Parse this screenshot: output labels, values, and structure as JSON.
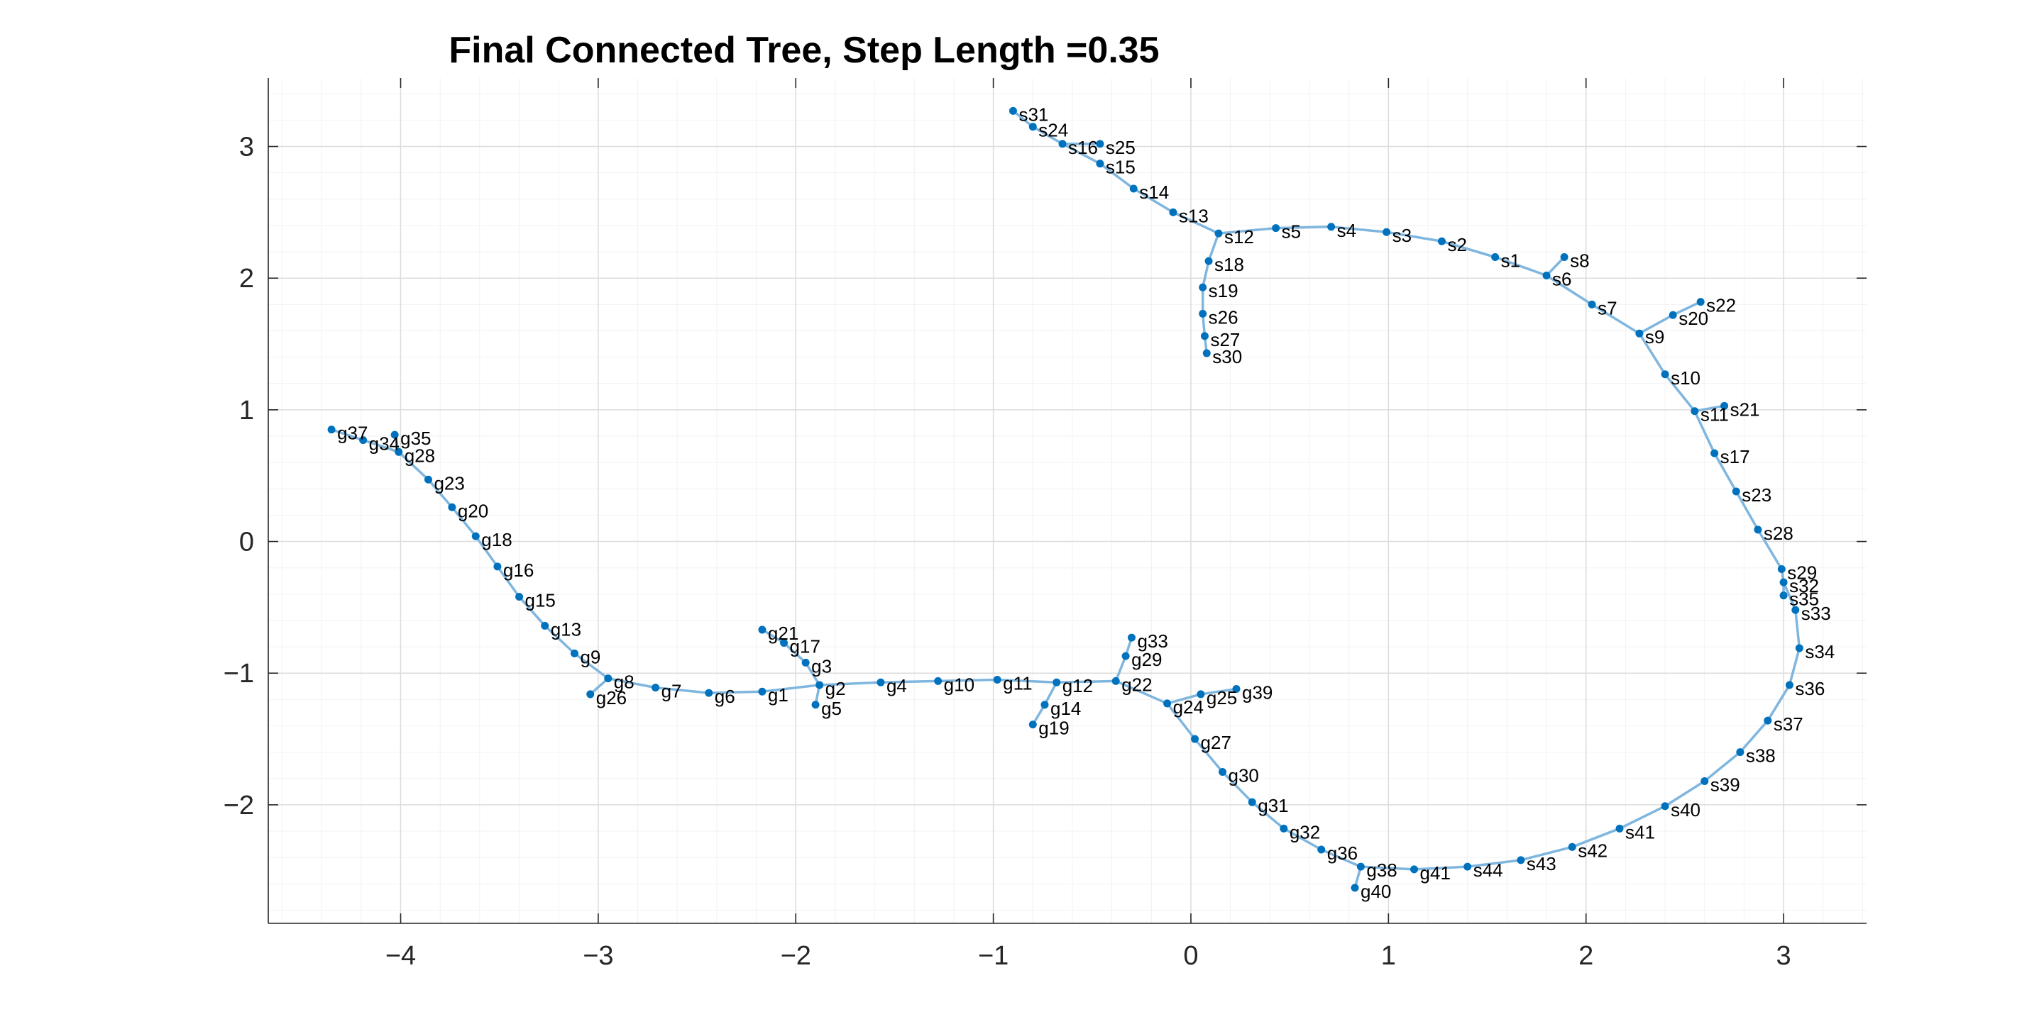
{
  "chart_data": {
    "type": "scatter",
    "title": "Final Connected Tree, Step Length =0.35",
    "xlabel": "",
    "ylabel": "",
    "xlim": [
      -4.67,
      3.42
    ],
    "ylim": [
      -2.9,
      3.52
    ],
    "xticks": [
      -4,
      -3,
      -2,
      -1,
      0,
      1,
      2,
      3
    ],
    "yticks": [
      -2,
      -1,
      0,
      1,
      2,
      3
    ],
    "grid": true,
    "minor_grid": true,
    "colors": {
      "edge": "#7fb6df",
      "node": "#0072bd",
      "axis": "#262626",
      "grid": "#e8e8e8"
    },
    "nodes": [
      {
        "label": "s1",
        "x": 1.54,
        "y": 2.16
      },
      {
        "label": "s2",
        "x": 1.27,
        "y": 2.28
      },
      {
        "label": "s3",
        "x": 0.99,
        "y": 2.35
      },
      {
        "label": "s4",
        "x": 0.71,
        "y": 2.39
      },
      {
        "label": "s5",
        "x": 0.43,
        "y": 2.38
      },
      {
        "label": "s6",
        "x": 1.8,
        "y": 2.02
      },
      {
        "label": "s7",
        "x": 2.03,
        "y": 1.8
      },
      {
        "label": "s8",
        "x": 1.89,
        "y": 2.16
      },
      {
        "label": "s9",
        "x": 2.27,
        "y": 1.58
      },
      {
        "label": "s10",
        "x": 2.4,
        "y": 1.27
      },
      {
        "label": "s11",
        "x": 2.55,
        "y": 0.99
      },
      {
        "label": "s12",
        "x": 0.14,
        "y": 2.34
      },
      {
        "label": "s13",
        "x": -0.09,
        "y": 2.5
      },
      {
        "label": "s14",
        "x": -0.29,
        "y": 2.68
      },
      {
        "label": "s15",
        "x": -0.46,
        "y": 2.87
      },
      {
        "label": "s16",
        "x": -0.65,
        "y": 3.02
      },
      {
        "label": "s17",
        "x": 2.65,
        "y": 0.67
      },
      {
        "label": "s18",
        "x": 0.09,
        "y": 2.13
      },
      {
        "label": "s19",
        "x": 0.06,
        "y": 1.93
      },
      {
        "label": "s20",
        "x": 2.44,
        "y": 1.72
      },
      {
        "label": "s21",
        "x": 2.7,
        "y": 1.03
      },
      {
        "label": "s22",
        "x": 2.58,
        "y": 1.82
      },
      {
        "label": "s23",
        "x": 2.76,
        "y": 0.38
      },
      {
        "label": "s24",
        "x": -0.8,
        "y": 3.15
      },
      {
        "label": "s25",
        "x": -0.46,
        "y": 3.02
      },
      {
        "label": "s26",
        "x": 0.06,
        "y": 1.73
      },
      {
        "label": "s27",
        "x": 0.07,
        "y": 1.56
      },
      {
        "label": "s28",
        "x": 2.87,
        "y": 0.09
      },
      {
        "label": "s29",
        "x": 2.99,
        "y": -0.21
      },
      {
        "label": "s30",
        "x": 0.08,
        "y": 1.43
      },
      {
        "label": "s31",
        "x": -0.9,
        "y": 3.27
      },
      {
        "label": "s32",
        "x": 3.0,
        "y": -0.31
      },
      {
        "label": "s33",
        "x": 3.06,
        "y": -0.52
      },
      {
        "label": "s34",
        "x": 3.08,
        "y": -0.81
      },
      {
        "label": "s35",
        "x": 3.0,
        "y": -0.41
      },
      {
        "label": "s36",
        "x": 3.03,
        "y": -1.09
      },
      {
        "label": "s37",
        "x": 2.92,
        "y": -1.36
      },
      {
        "label": "s38",
        "x": 2.78,
        "y": -1.6
      },
      {
        "label": "s39",
        "x": 2.6,
        "y": -1.82
      },
      {
        "label": "s40",
        "x": 2.4,
        "y": -2.01
      },
      {
        "label": "s41",
        "x": 2.17,
        "y": -2.18
      },
      {
        "label": "s42",
        "x": 1.93,
        "y": -2.32
      },
      {
        "label": "s43",
        "x": 1.67,
        "y": -2.42
      },
      {
        "label": "s44",
        "x": 1.4,
        "y": -2.47
      },
      {
        "label": "g1",
        "x": -2.17,
        "y": -1.14
      },
      {
        "label": "g2",
        "x": -1.88,
        "y": -1.09
      },
      {
        "label": "g3",
        "x": -1.95,
        "y": -0.92
      },
      {
        "label": "g4",
        "x": -1.57,
        "y": -1.07
      },
      {
        "label": "g5",
        "x": -1.9,
        "y": -1.24
      },
      {
        "label": "g6",
        "x": -2.44,
        "y": -1.15
      },
      {
        "label": "g7",
        "x": -2.71,
        "y": -1.11
      },
      {
        "label": "g8",
        "x": -2.95,
        "y": -1.04
      },
      {
        "label": "g9",
        "x": -3.12,
        "y": -0.85
      },
      {
        "label": "g10",
        "x": -1.28,
        "y": -1.06
      },
      {
        "label": "g11",
        "x": -0.98,
        "y": -1.05
      },
      {
        "label": "g12",
        "x": -0.68,
        "y": -1.07
      },
      {
        "label": "g13",
        "x": -3.27,
        "y": -0.64
      },
      {
        "label": "g14",
        "x": -0.74,
        "y": -1.24
      },
      {
        "label": "g15",
        "x": -3.4,
        "y": -0.42
      },
      {
        "label": "g16",
        "x": -3.51,
        "y": -0.19
      },
      {
        "label": "g17",
        "x": -2.06,
        "y": -0.77
      },
      {
        "label": "g18",
        "x": -3.62,
        "y": 0.04
      },
      {
        "label": "g19",
        "x": -0.8,
        "y": -1.39
      },
      {
        "label": "g20",
        "x": -3.74,
        "y": 0.26
      },
      {
        "label": "g21",
        "x": -2.17,
        "y": -0.67
      },
      {
        "label": "g22",
        "x": -0.38,
        "y": -1.06
      },
      {
        "label": "g23",
        "x": -3.86,
        "y": 0.47
      },
      {
        "label": "g24",
        "x": -0.12,
        "y": -1.23
      },
      {
        "label": "g25",
        "x": 0.05,
        "y": -1.16
      },
      {
        "label": "g26",
        "x": -3.04,
        "y": -1.16
      },
      {
        "label": "g27",
        "x": 0.02,
        "y": -1.5
      },
      {
        "label": "g28",
        "x": -4.01,
        "y": 0.68
      },
      {
        "label": "g29",
        "x": -0.33,
        "y": -0.87
      },
      {
        "label": "g30",
        "x": 0.16,
        "y": -1.75
      },
      {
        "label": "g31",
        "x": 0.31,
        "y": -1.98
      },
      {
        "label": "g32",
        "x": 0.47,
        "y": -2.18
      },
      {
        "label": "g33",
        "x": -0.3,
        "y": -0.73
      },
      {
        "label": "g34",
        "x": -4.19,
        "y": 0.77
      },
      {
        "label": "g35",
        "x": -4.03,
        "y": 0.81
      },
      {
        "label": "g36",
        "x": 0.66,
        "y": -2.34
      },
      {
        "label": "g37",
        "x": -4.35,
        "y": 0.85
      },
      {
        "label": "g38",
        "x": 0.86,
        "y": -2.47
      },
      {
        "label": "g39",
        "x": 0.23,
        "y": -1.12
      },
      {
        "label": "g40",
        "x": 0.83,
        "y": -2.63
      },
      {
        "label": "g41",
        "x": 1.13,
        "y": -2.49
      }
    ],
    "edges": [
      [
        "s31",
        "s24"
      ],
      [
        "s24",
        "s16"
      ],
      [
        "s16",
        "s15"
      ],
      [
        "s16",
        "s25"
      ],
      [
        "s15",
        "s14"
      ],
      [
        "s14",
        "s13"
      ],
      [
        "s13",
        "s12"
      ],
      [
        "s12",
        "s5"
      ],
      [
        "s5",
        "s4"
      ],
      [
        "s4",
        "s3"
      ],
      [
        "s3",
        "s2"
      ],
      [
        "s2",
        "s1"
      ],
      [
        "s1",
        "s6"
      ],
      [
        "s6",
        "s8"
      ],
      [
        "s6",
        "s7"
      ],
      [
        "s7",
        "s9"
      ],
      [
        "s9",
        "s20"
      ],
      [
        "s20",
        "s22"
      ],
      [
        "s9",
        "s10"
      ],
      [
        "s10",
        "s11"
      ],
      [
        "s11",
        "s21"
      ],
      [
        "s11",
        "s17"
      ],
      [
        "s17",
        "s23"
      ],
      [
        "s23",
        "s28"
      ],
      [
        "s28",
        "s29"
      ],
      [
        "s29",
        "s32"
      ],
      [
        "s32",
        "s35"
      ],
      [
        "s32",
        "s33"
      ],
      [
        "s33",
        "s34"
      ],
      [
        "s34",
        "s36"
      ],
      [
        "s36",
        "s37"
      ],
      [
        "s37",
        "s38"
      ],
      [
        "s38",
        "s39"
      ],
      [
        "s39",
        "s40"
      ],
      [
        "s40",
        "s41"
      ],
      [
        "s41",
        "s42"
      ],
      [
        "s42",
        "s43"
      ],
      [
        "s43",
        "s44"
      ],
      [
        "s44",
        "g41"
      ],
      [
        "g41",
        "g38"
      ],
      [
        "g38",
        "g40"
      ],
      [
        "g38",
        "g36"
      ],
      [
        "g36",
        "g32"
      ],
      [
        "g32",
        "g31"
      ],
      [
        "g31",
        "g30"
      ],
      [
        "g30",
        "g27"
      ],
      [
        "g27",
        "g24"
      ],
      [
        "g24",
        "g25"
      ],
      [
        "g25",
        "g39"
      ],
      [
        "g24",
        "g22"
      ],
      [
        "g22",
        "g29"
      ],
      [
        "g29",
        "g33"
      ],
      [
        "g22",
        "g12"
      ],
      [
        "g12",
        "g14"
      ],
      [
        "g14",
        "g19"
      ],
      [
        "g12",
        "g11"
      ],
      [
        "g11",
        "g10"
      ],
      [
        "g10",
        "g4"
      ],
      [
        "g4",
        "g2"
      ],
      [
        "g2",
        "g5"
      ],
      [
        "g2",
        "g3"
      ],
      [
        "g3",
        "g17"
      ],
      [
        "g17",
        "g21"
      ],
      [
        "g2",
        "g1"
      ],
      [
        "g1",
        "g6"
      ],
      [
        "g6",
        "g7"
      ],
      [
        "g7",
        "g8"
      ],
      [
        "g8",
        "g26"
      ],
      [
        "g8",
        "g9"
      ],
      [
        "g9",
        "g13"
      ],
      [
        "g13",
        "g15"
      ],
      [
        "g15",
        "g16"
      ],
      [
        "g16",
        "g18"
      ],
      [
        "g18",
        "g20"
      ],
      [
        "g20",
        "g23"
      ],
      [
        "g23",
        "g28"
      ],
      [
        "g28",
        "g35"
      ],
      [
        "g28",
        "g34"
      ],
      [
        "g34",
        "g37"
      ],
      [
        "s12",
        "s18"
      ],
      [
        "s18",
        "s19"
      ],
      [
        "s19",
        "s26"
      ],
      [
        "s26",
        "s27"
      ],
      [
        "s27",
        "s30"
      ]
    ]
  }
}
